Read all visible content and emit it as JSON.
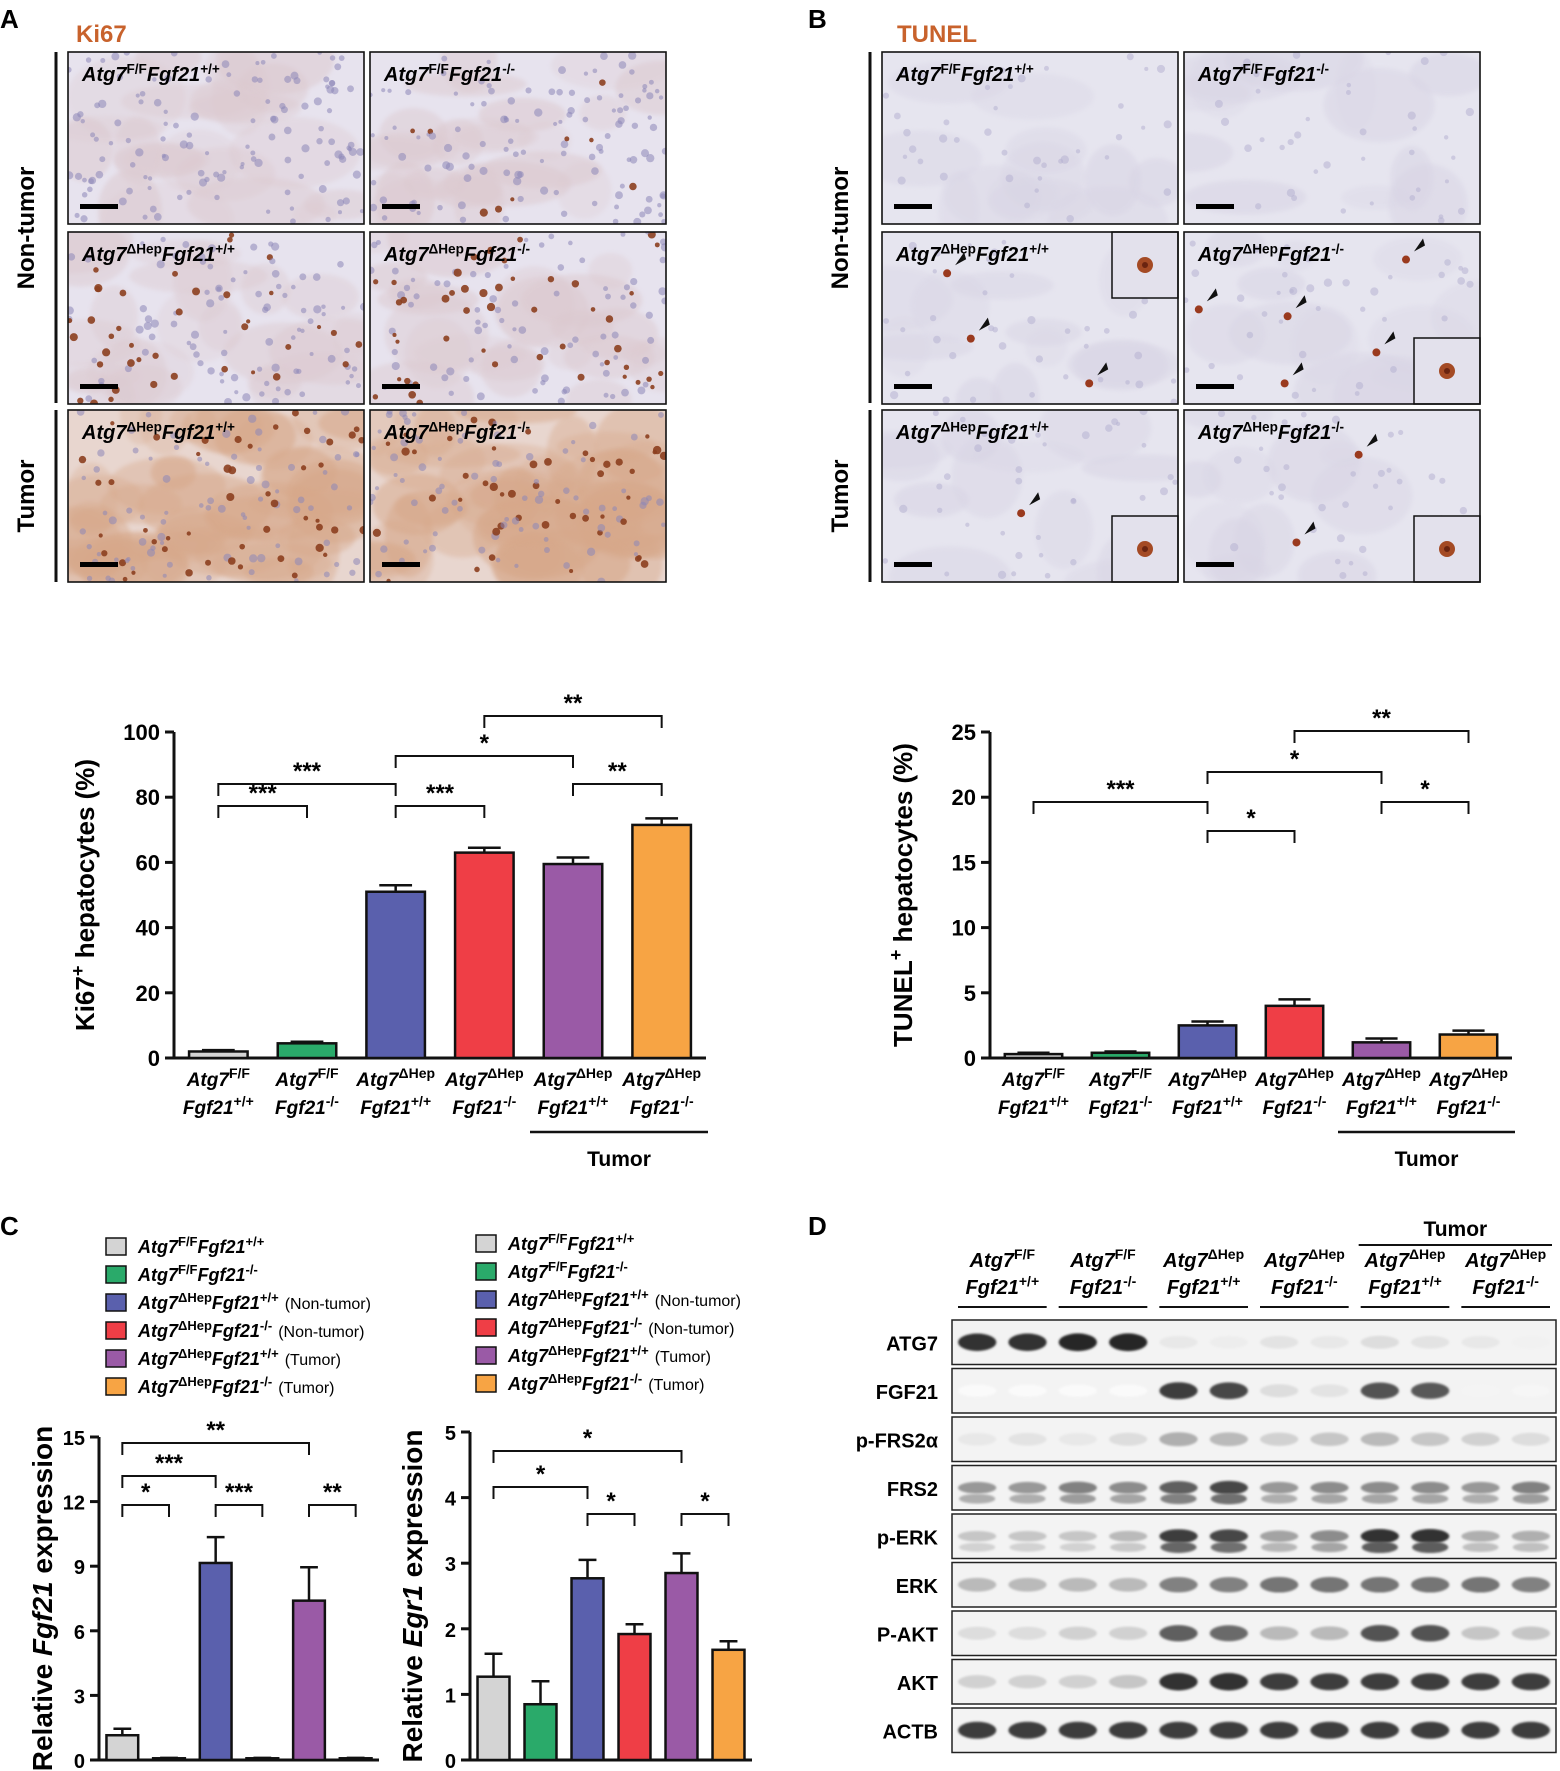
{
  "colors": {
    "grey": "#d4d4d4",
    "green": "#2aaa6a",
    "blue": "#5a60ad",
    "red": "#ef3e46",
    "purple": "#9a5aa6",
    "orange": "#f7a444",
    "stain_brown": "#b5643a",
    "tissue_blue": "#c9c6de"
  },
  "panel_letters": [
    "A",
    "B",
    "C",
    "D"
  ],
  "panelA": {
    "stain": "Ki67",
    "row_labels": [
      "Non-tumor",
      "Tumor"
    ],
    "images": [
      {
        "gene": "Atg7",
        "sup": "F/F",
        "gene2": "Fgf21",
        "sup2": "+/+"
      },
      {
        "gene": "Atg7",
        "sup": "F/F",
        "gene2": "Fgf21",
        "sup2": "-/-"
      },
      {
        "gene": "Atg7",
        "sup": "ΔHep",
        "gene2": "Fgf21",
        "sup2": "+/+"
      },
      {
        "gene": "Atg7",
        "sup": "ΔHep",
        "gene2": "Fgf21",
        "sup2": "-/-"
      },
      {
        "gene": "Atg7",
        "sup": "ΔHep",
        "gene2": "Fgf21",
        "sup2": "+/+"
      },
      {
        "gene": "Atg7",
        "sup": "ΔHep",
        "gene2": "Fgf21",
        "sup2": "-/-"
      }
    ]
  },
  "panelB": {
    "stain": "TUNEL",
    "row_labels": [
      "Non-tumor",
      "Tumor"
    ],
    "images": [
      {
        "gene": "Atg7",
        "sup": "F/F",
        "gene2": "Fgf21",
        "sup2": "+/+"
      },
      {
        "gene": "Atg7",
        "sup": "F/F",
        "gene2": "Fgf21",
        "sup2": "-/-"
      },
      {
        "gene": "Atg7",
        "sup": "ΔHep",
        "gene2": "Fgf21",
        "sup2": "+/+"
      },
      {
        "gene": "Atg7",
        "sup": "ΔHep",
        "gene2": "Fgf21",
        "sup2": "-/-"
      },
      {
        "gene": "Atg7",
        "sup": "ΔHep",
        "gene2": "Fgf21",
        "sup2": "+/+"
      },
      {
        "gene": "Atg7",
        "sup": "ΔHep",
        "gene2": "Fgf21",
        "sup2": "-/-"
      }
    ]
  },
  "group_labels": [
    {
      "l1": "Atg7",
      "s1": "F/F",
      "l2": "Fgf21",
      "s2": "+/+"
    },
    {
      "l1": "Atg7",
      "s1": "F/F",
      "l2": "Fgf21",
      "s2": "-/-"
    },
    {
      "l1": "Atg7",
      "s1": "ΔHep",
      "l2": "Fgf21",
      "s2": "+/+"
    },
    {
      "l1": "Atg7",
      "s1": "ΔHep",
      "l2": "Fgf21",
      "s2": "-/-"
    },
    {
      "l1": "Atg7",
      "s1": "ΔHep",
      "l2": "Fgf21",
      "s2": "+/+"
    },
    {
      "l1": "Atg7",
      "s1": "ΔHep",
      "l2": "Fgf21",
      "s2": "-/-"
    }
  ],
  "tumor_label": "Tumor",
  "legend": [
    {
      "g1": "Atg7",
      "s1": "F/F",
      "g2": "Fgf21",
      "s2": "+/+",
      "note": ""
    },
    {
      "g1": "Atg7",
      "s1": "F/F",
      "g2": "Fgf21",
      "s2": "-/-",
      "note": ""
    },
    {
      "g1": "Atg7",
      "s1": "ΔHep",
      "g2": "Fgf21",
      "s2": "+/+",
      "note": "(Non-tumor)"
    },
    {
      "g1": "Atg7",
      "s1": "ΔHep",
      "g2": "Fgf21",
      "s2": "-/-",
      "note": "(Non-tumor)"
    },
    {
      "g1": "Atg7",
      "s1": "ΔHep",
      "g2": "Fgf21",
      "s2": "+/+",
      "note": "(Tumor)"
    },
    {
      "g1": "Atg7",
      "s1": "ΔHep",
      "g2": "Fgf21",
      "s2": "-/-",
      "note": "(Tumor)"
    }
  ],
  "chart_data": [
    {
      "type": "bar",
      "id": "ki67",
      "ylabel_pre": "Ki67",
      "ylabel_sup": "+",
      "ylabel_post": " hepatocytes (%)",
      "ylim": [
        0,
        100
      ],
      "yticks": [
        0,
        20,
        40,
        60,
        80,
        100
      ],
      "values": [
        2,
        4.5,
        51,
        63,
        59.5,
        71.5
      ],
      "errors": [
        0.4,
        0.5,
        2,
        1.5,
        2,
        2
      ],
      "significance": [
        {
          "a": 0,
          "b": 2,
          "label": "***"
        },
        {
          "a": 0,
          "b": 1,
          "label": "***"
        },
        {
          "a": 2,
          "b": 3,
          "label": "***"
        },
        {
          "a": 2,
          "b": 4,
          "label": "*"
        },
        {
          "a": 3,
          "b": 5,
          "label": "**"
        },
        {
          "a": 4,
          "b": 5,
          "label": "**"
        }
      ]
    },
    {
      "type": "bar",
      "id": "tunel",
      "ylabel_pre": "TUNEL",
      "ylabel_sup": "+",
      "ylabel_post": " hepatocytes (%)",
      "ylim": [
        0,
        25
      ],
      "yticks": [
        0,
        5,
        10,
        15,
        20,
        25
      ],
      "values": [
        0.3,
        0.4,
        2.5,
        4.0,
        1.2,
        1.8
      ],
      "errors": [
        0.1,
        0.1,
        0.3,
        0.5,
        0.3,
        0.3
      ],
      "significance": [
        {
          "a": 0,
          "b": 2,
          "label": "***"
        },
        {
          "a": 2,
          "b": 3,
          "label": "*"
        },
        {
          "a": 2,
          "b": 4,
          "label": "*"
        },
        {
          "a": 3,
          "b": 5,
          "label": "**"
        },
        {
          "a": 4,
          "b": 5,
          "label": "*"
        }
      ]
    },
    {
      "type": "bar",
      "id": "fgf21",
      "ylabel_pre": "Relative ",
      "ylabel_ital": "Fgf21",
      "ylabel_post": " expression",
      "ylim": [
        0,
        15
      ],
      "yticks": [
        0,
        3,
        6,
        9,
        12,
        15
      ],
      "values": [
        1.15,
        0.08,
        9.15,
        0.08,
        7.4,
        0.08
      ],
      "errors": [
        0.3,
        0.02,
        1.2,
        0.02,
        1.55,
        0.02
      ],
      "significance": [
        {
          "a": 0,
          "b": 1,
          "label": "*"
        },
        {
          "a": 0,
          "b": 2,
          "label": "***"
        },
        {
          "a": 0,
          "b": 4,
          "label": "**"
        },
        {
          "a": 2,
          "b": 3,
          "label": "***"
        },
        {
          "a": 4,
          "b": 5,
          "label": "**"
        }
      ]
    },
    {
      "type": "bar",
      "id": "egr1",
      "ylabel_pre": "Relative ",
      "ylabel_ital": "Egr1",
      "ylabel_post": " expression",
      "ylim": [
        0,
        5
      ],
      "yticks": [
        0,
        1,
        2,
        3,
        4,
        5
      ],
      "values": [
        1.27,
        0.85,
        2.77,
        1.92,
        2.85,
        1.68
      ],
      "errors": [
        0.35,
        0.35,
        0.28,
        0.15,
        0.3,
        0.13
      ],
      "significance": [
        {
          "a": 0,
          "b": 2,
          "label": "*"
        },
        {
          "a": 0,
          "b": 4,
          "label": "*"
        },
        {
          "a": 2,
          "b": 3,
          "label": "*"
        },
        {
          "a": 4,
          "b": 5,
          "label": "*"
        }
      ]
    }
  ],
  "panelD": {
    "tumor_label": "Tumor",
    "rows": [
      {
        "name": "ATG7",
        "intensity": [
          0.9,
          0.9,
          0.95,
          0.95,
          0.1,
          0.08,
          0.12,
          0.1,
          0.15,
          0.12,
          0.1,
          0.06
        ]
      },
      {
        "name": "FGF21",
        "intensity": [
          0.02,
          0.02,
          0.02,
          0.02,
          0.85,
          0.8,
          0.15,
          0.12,
          0.75,
          0.72,
          0.05,
          0.04
        ]
      },
      {
        "name": "p-FRS2α",
        "intensity": [
          0.1,
          0.12,
          0.1,
          0.15,
          0.35,
          0.3,
          0.2,
          0.25,
          0.3,
          0.25,
          0.2,
          0.15
        ]
      },
      {
        "name": "FRS2",
        "intensity": [
          0.45,
          0.45,
          0.55,
          0.5,
          0.7,
          0.8,
          0.45,
          0.5,
          0.5,
          0.5,
          0.45,
          0.55
        ]
      },
      {
        "name": "p-ERK",
        "intensity": [
          0.25,
          0.25,
          0.25,
          0.3,
          0.85,
          0.8,
          0.4,
          0.5,
          0.9,
          0.9,
          0.35,
          0.35
        ]
      },
      {
        "name": "ERK",
        "intensity": [
          0.3,
          0.3,
          0.3,
          0.3,
          0.55,
          0.55,
          0.6,
          0.6,
          0.6,
          0.6,
          0.6,
          0.55
        ]
      },
      {
        "name": "P-AKT",
        "intensity": [
          0.15,
          0.15,
          0.2,
          0.2,
          0.7,
          0.65,
          0.3,
          0.3,
          0.75,
          0.75,
          0.25,
          0.25
        ]
      },
      {
        "name": "AKT",
        "intensity": [
          0.2,
          0.2,
          0.2,
          0.25,
          0.9,
          0.9,
          0.85,
          0.85,
          0.85,
          0.85,
          0.85,
          0.85
        ]
      },
      {
        "name": "ACTB",
        "intensity": [
          0.85,
          0.85,
          0.85,
          0.85,
          0.85,
          0.85,
          0.85,
          0.85,
          0.85,
          0.85,
          0.85,
          0.85
        ]
      }
    ]
  }
}
